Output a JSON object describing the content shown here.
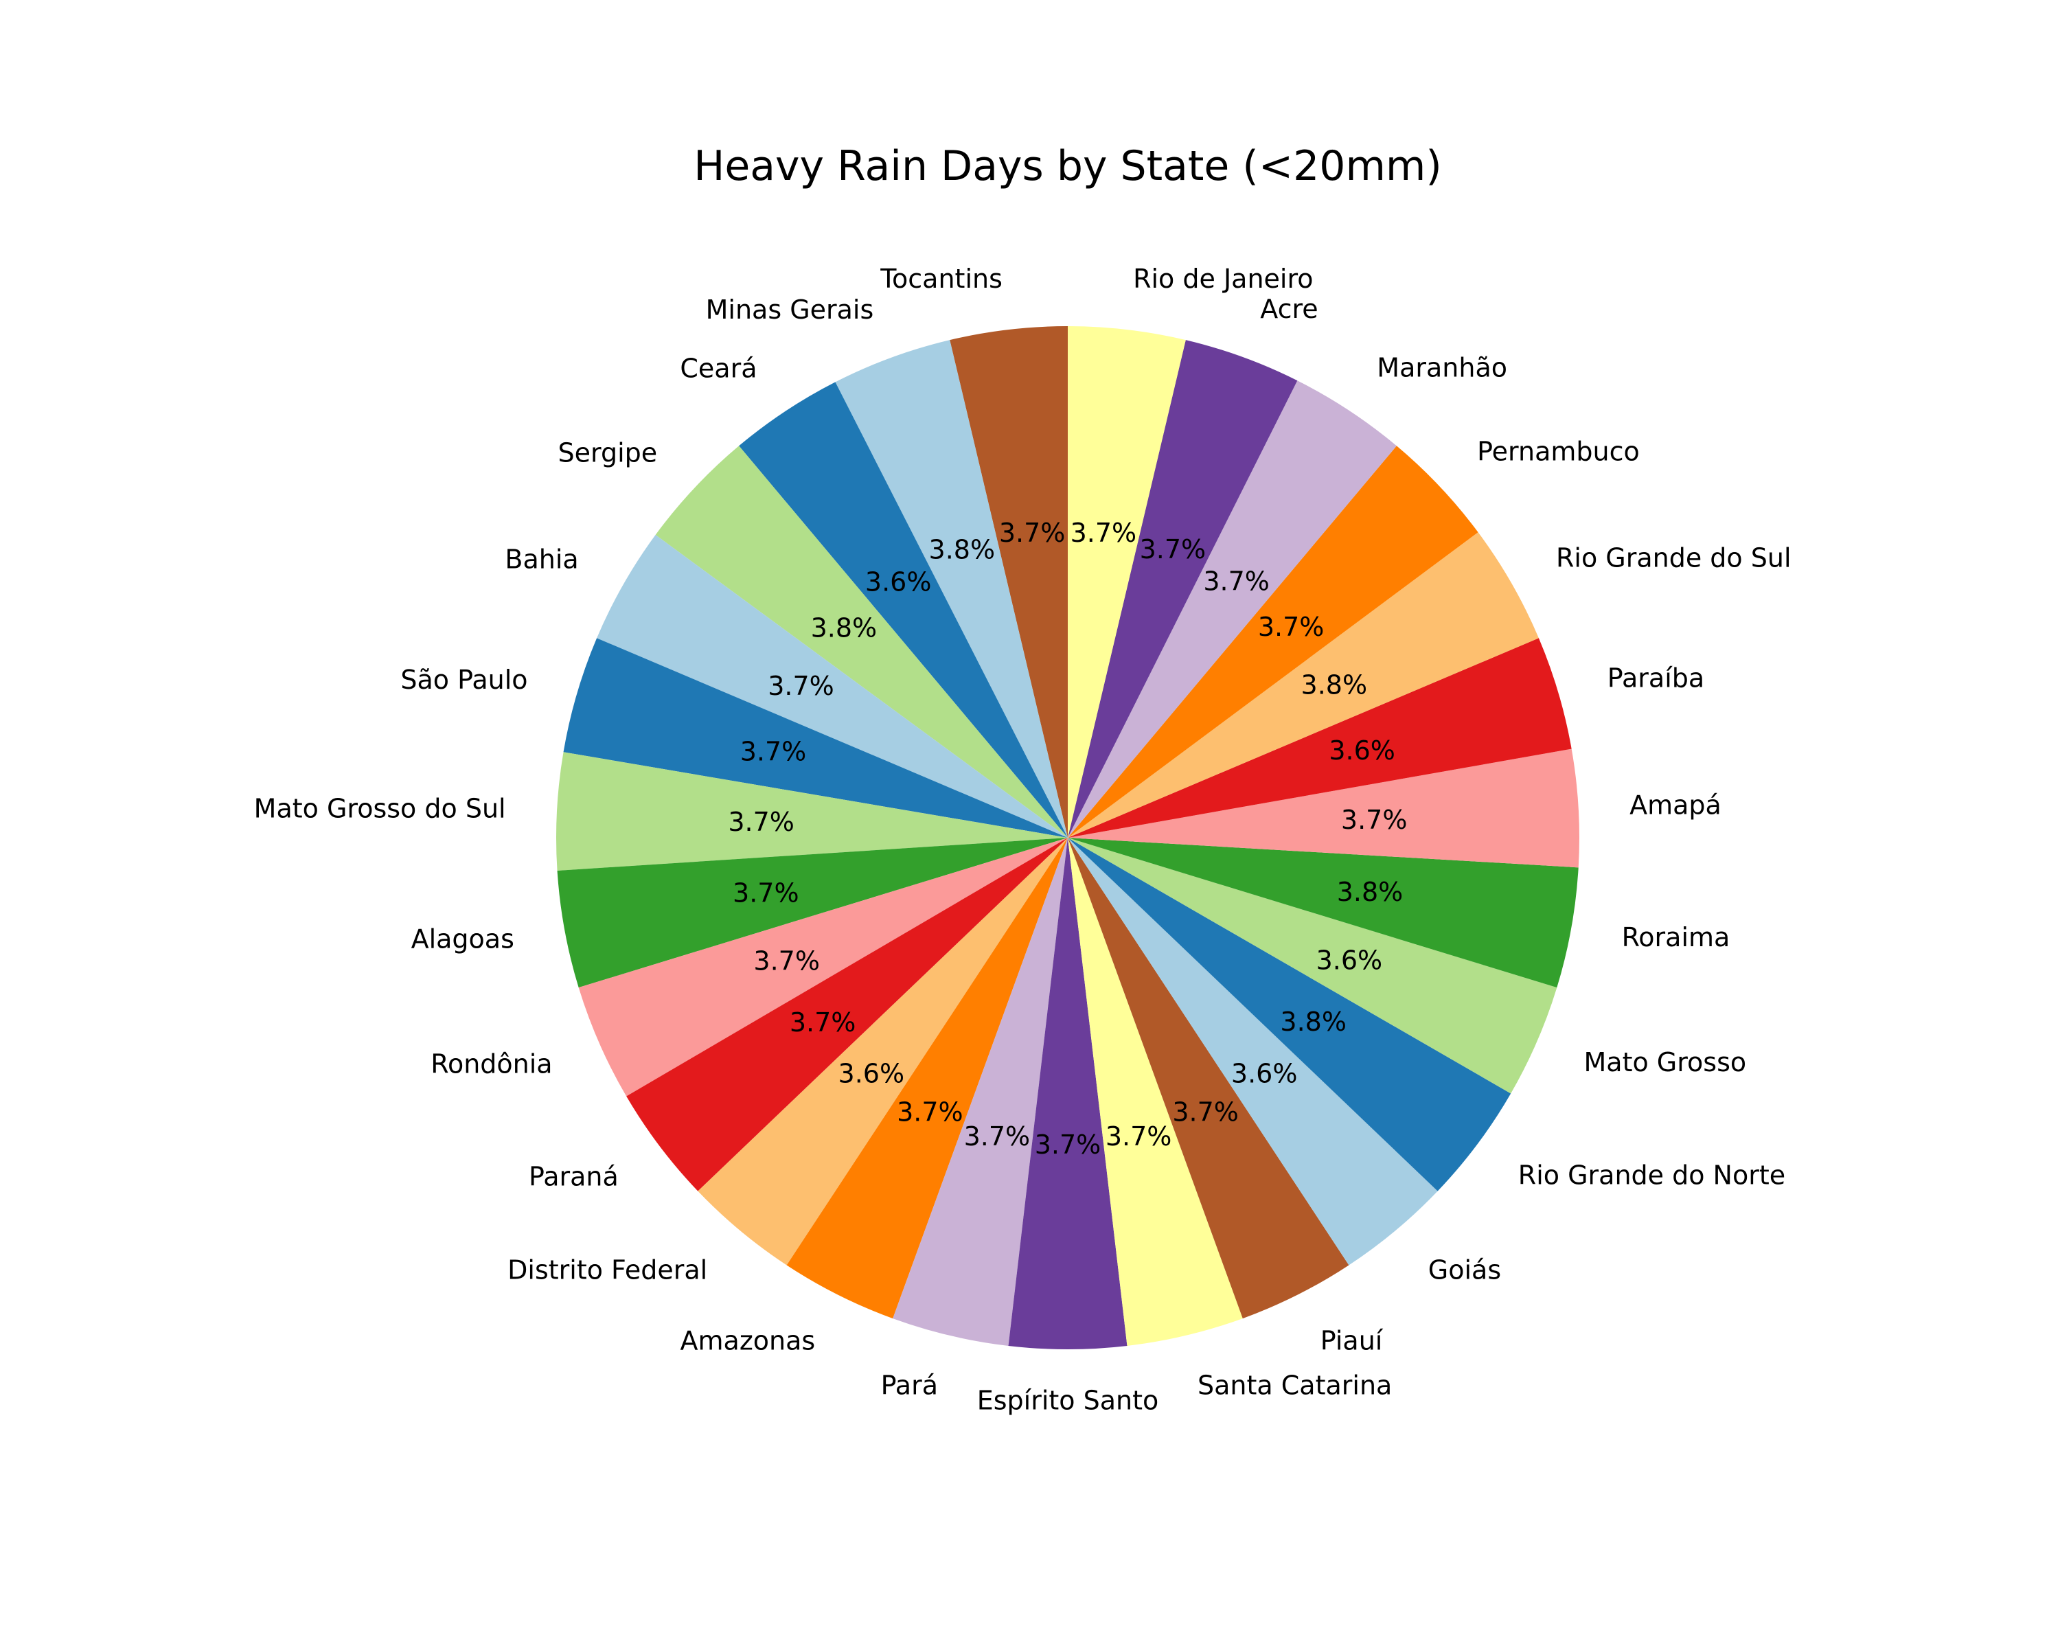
{
  "chart_data": {
    "type": "pie",
    "title": "Heavy Rain Days by State (<20mm)",
    "start_angle_deg": 90,
    "direction": "counterclockwise",
    "slices": [
      {
        "label": "Tocantins",
        "value": 3.7,
        "pct_text": "3.7%",
        "color": "#b15928"
      },
      {
        "label": "Minas Gerais",
        "value": 3.8,
        "pct_text": "3.8%",
        "color": "#a6cee3"
      },
      {
        "label": "Ceará",
        "value": 3.6,
        "pct_text": "3.6%",
        "color": "#1f78b4"
      },
      {
        "label": "Sergipe",
        "value": 3.8,
        "pct_text": "3.8%",
        "color": "#b2df8a"
      },
      {
        "label": "Bahia",
        "value": 3.7,
        "pct_text": "3.7%",
        "color": "#a6cee3"
      },
      {
        "label": "São Paulo",
        "value": 3.7,
        "pct_text": "3.7%",
        "color": "#1f78b4"
      },
      {
        "label": "Mato Grosso do Sul",
        "value": 3.7,
        "pct_text": "3.7%",
        "color": "#b2df8a"
      },
      {
        "label": "Alagoas",
        "value": 3.7,
        "pct_text": "3.7%",
        "color": "#33a02c"
      },
      {
        "label": "Rondônia",
        "value": 3.7,
        "pct_text": "3.7%",
        "color": "#fb9a99"
      },
      {
        "label": "Paraná",
        "value": 3.7,
        "pct_text": "3.7%",
        "color": "#e31a1c"
      },
      {
        "label": "Distrito Federal",
        "value": 3.6,
        "pct_text": "3.6%",
        "color": "#fdbf6f"
      },
      {
        "label": "Amazonas",
        "value": 3.7,
        "pct_text": "3.7%",
        "color": "#ff7f00"
      },
      {
        "label": "Pará",
        "value": 3.7,
        "pct_text": "3.7%",
        "color": "#cab2d6"
      },
      {
        "label": "Espírito Santo",
        "value": 3.7,
        "pct_text": "3.7%",
        "color": "#6a3d9a"
      },
      {
        "label": "Santa Catarina",
        "value": 3.7,
        "pct_text": "3.7%",
        "color": "#ffff99"
      },
      {
        "label": "Piauí",
        "value": 3.7,
        "pct_text": "3.7%",
        "color": "#b15928"
      },
      {
        "label": "Goiás",
        "value": 3.6,
        "pct_text": "3.6%",
        "color": "#a6cee3"
      },
      {
        "label": "Rio Grande do Norte",
        "value": 3.8,
        "pct_text": "3.8%",
        "color": "#1f78b4"
      },
      {
        "label": "Mato Grosso",
        "value": 3.6,
        "pct_text": "3.6%",
        "color": "#b2df8a"
      },
      {
        "label": "Roraima",
        "value": 3.8,
        "pct_text": "3.8%",
        "color": "#33a02c"
      },
      {
        "label": "Amapá",
        "value": 3.7,
        "pct_text": "3.7%",
        "color": "#fb9a99"
      },
      {
        "label": "Paraíba",
        "value": 3.6,
        "pct_text": "3.6%",
        "color": "#e31a1c"
      },
      {
        "label": "Rio Grande do Sul",
        "value": 3.8,
        "pct_text": "3.8%",
        "color": "#fdbf6f"
      },
      {
        "label": "Pernambuco",
        "value": 3.7,
        "pct_text": "3.7%",
        "color": "#ff7f00"
      },
      {
        "label": "Maranhão",
        "value": 3.7,
        "pct_text": "3.7%",
        "color": "#cab2d6"
      },
      {
        "label": "Acre",
        "value": 3.7,
        "pct_text": "3.7%",
        "color": "#6a3d9a"
      },
      {
        "label": "Rio de Janeiro",
        "value": 3.7,
        "pct_text": "3.7%",
        "color": "#ffff99"
      }
    ]
  }
}
